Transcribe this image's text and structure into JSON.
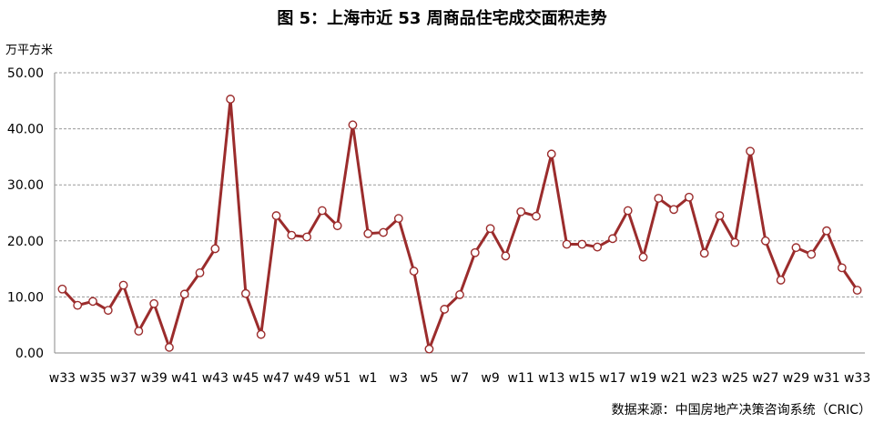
{
  "chart_data": {
    "type": "line",
    "title": "图 5：上海市近 53 周商品住宅成交面积走势",
    "ylabel": "万平方米",
    "source": "数据来源：中国房地产决策咨询系统（CRIC）",
    "ylim": [
      0,
      50
    ],
    "yticks": [
      "0.00",
      "10.00",
      "20.00",
      "30.00",
      "40.00",
      "50.00"
    ],
    "grid": true,
    "legend": "none",
    "line_color": "#9b2c2c",
    "marker_fill": "#ffffff",
    "x": [
      "w33",
      "w34",
      "w35",
      "w36",
      "w37",
      "w38",
      "w39",
      "w40",
      "w41",
      "w42",
      "w43",
      "w44",
      "w45",
      "w46",
      "w47",
      "w48",
      "w49",
      "w50",
      "w51",
      "w52",
      "w1",
      "w2",
      "w3",
      "w4",
      "w5",
      "w6",
      "w7",
      "w8",
      "w9",
      "w10",
      "w11",
      "w12",
      "w13",
      "w14",
      "w15",
      "w16",
      "w17",
      "w18",
      "w19",
      "w20",
      "w21",
      "w22",
      "w23",
      "w24",
      "w25",
      "w26",
      "w27",
      "w28",
      "w29",
      "w30",
      "w31",
      "w32",
      "w33"
    ],
    "xtick_labels": [
      "w33",
      "w35",
      "w37",
      "w39",
      "w41",
      "w43",
      "w45",
      "w47",
      "w49",
      "w51",
      "w1",
      "w3",
      "w5",
      "w7",
      "w9",
      "w11",
      "w13",
      "w15",
      "w17",
      "w19",
      "w21",
      "w23",
      "w25",
      "w27",
      "w29",
      "w31",
      "w33"
    ],
    "series": [
      {
        "values": [
          11.4,
          8.5,
          9.2,
          7.6,
          12.1,
          3.9,
          8.8,
          1.0,
          10.5,
          14.3,
          18.6,
          45.3,
          10.6,
          3.3,
          24.5,
          21.0,
          20.7,
          25.4,
          22.7,
          40.7,
          21.3,
          21.5,
          24.0,
          14.6,
          0.7,
          7.8,
          10.4,
          17.9,
          22.2,
          17.3,
          25.2,
          24.4,
          35.5,
          19.4,
          19.4,
          18.9,
          20.4,
          25.4,
          17.1,
          27.6,
          25.6,
          27.8,
          17.8,
          24.5,
          19.7,
          36.0,
          20.0,
          13.0,
          18.8,
          17.6,
          21.8,
          15.2,
          11.2
        ]
      }
    ]
  }
}
